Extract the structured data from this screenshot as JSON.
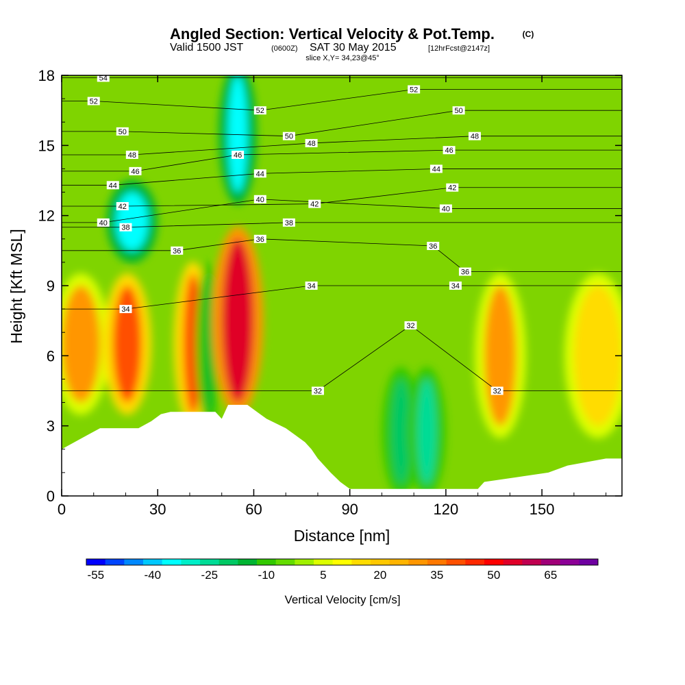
{
  "title": {
    "main": "Angled Section: Vertical Velocity & Pot.Temp.",
    "copyright": "(C)",
    "valid_prefix": "Valid 1500 JST",
    "zulu": "(0600Z)",
    "valid_date": "SAT 30 May 2015",
    "forecast": "[12hrFcst@2147z]",
    "slice": "slice X,Y= 34,23@45°"
  },
  "chart_data": {
    "type": "heatmap",
    "xlabel": "Distance [nm]",
    "ylabel": "Height [Kft MSL]",
    "xlim": [
      0,
      175
    ],
    "ylim": [
      0,
      18
    ],
    "x_ticks": [
      0,
      30,
      60,
      90,
      120,
      150
    ],
    "y_ticks": [
      0,
      3,
      6,
      9,
      12,
      15,
      18
    ],
    "colorbar": {
      "label": "Vertical Velocity [cm/s]",
      "tick_labels": [
        "-55",
        "-40",
        "-25",
        "-10",
        "5",
        "20",
        "35",
        "50",
        "65"
      ],
      "colors": [
        "#0000ff",
        "#0044ff",
        "#0088ff",
        "#00c8ff",
        "#00ffff",
        "#00eec8",
        "#00dc96",
        "#00c864",
        "#00b432",
        "#32c800",
        "#64dc00",
        "#a0f000",
        "#dcff00",
        "#ffff00",
        "#ffdc00",
        "#ffc800",
        "#ffb400",
        "#ff9600",
        "#ff7800",
        "#ff5000",
        "#ff2800",
        "#ff0000",
        "#e00028",
        "#c00050",
        "#a00078",
        "#8c0096",
        "#6e00a0"
      ]
    },
    "vertical_velocity_cells": [
      {
        "x": [
          0,
          12
        ],
        "y": [
          4,
          9
        ],
        "value": 30
      },
      {
        "x": [
          16,
          25
        ],
        "y": [
          4,
          9
        ],
        "value": 40
      },
      {
        "x": [
          17,
          27
        ],
        "y": [
          10.5,
          13
        ],
        "value": -35
      },
      {
        "x": [
          38,
          44
        ],
        "y": [
          3.5,
          9.5
        ],
        "value": 40
      },
      {
        "x": [
          45,
          47
        ],
        "y": [
          3.5,
          9.5
        ],
        "value": -15
      },
      {
        "x": [
          50,
          60
        ],
        "y": [
          4,
          11
        ],
        "value": 55
      },
      {
        "x": [
          52,
          58
        ],
        "y": [
          13,
          18
        ],
        "value": -35
      },
      {
        "x": [
          103,
          109
        ],
        "y": [
          0.5,
          5
        ],
        "value": -20
      },
      {
        "x": [
          111,
          117
        ],
        "y": [
          0.5,
          5
        ],
        "value": -25
      },
      {
        "x": [
          132,
          142
        ],
        "y": [
          3,
          9
        ],
        "value": 30
      },
      {
        "x": [
          160,
          175
        ],
        "y": [
          3,
          9
        ],
        "value": 15
      }
    ],
    "pot_temp_isentropes": [
      {
        "value": 32,
        "label_positions": [
          [
            80,
            4.5
          ],
          [
            109,
            7.3
          ],
          [
            136,
            4.5
          ]
        ]
      },
      {
        "value": 34,
        "label_positions": [
          [
            20,
            8
          ],
          [
            78,
            9
          ],
          [
            123,
            9
          ]
        ]
      },
      {
        "value": 36,
        "label_positions": [
          [
            36,
            10.5
          ],
          [
            62,
            11
          ],
          [
            116,
            10.7
          ],
          [
            126,
            9.6
          ]
        ]
      },
      {
        "value": 38,
        "label_positions": [
          [
            20,
            11.5
          ],
          [
            71,
            11.7
          ]
        ]
      },
      {
        "value": 40,
        "label_positions": [
          [
            13,
            11.7
          ],
          [
            62,
            12.7
          ],
          [
            120,
            12.3
          ]
        ]
      },
      {
        "value": 42,
        "label_positions": [
          [
            19,
            12.4
          ],
          [
            79,
            12.5
          ],
          [
            122,
            13.2
          ]
        ]
      },
      {
        "value": 44,
        "label_positions": [
          [
            16,
            13.3
          ],
          [
            62,
            13.8
          ],
          [
            117,
            14
          ]
        ]
      },
      {
        "value": 46,
        "label_positions": [
          [
            23,
            13.9
          ],
          [
            55,
            14.6
          ],
          [
            121,
            14.8
          ]
        ]
      },
      {
        "value": 48,
        "label_positions": [
          [
            22,
            14.6
          ],
          [
            78,
            15.1
          ],
          [
            129,
            15.4
          ]
        ]
      },
      {
        "value": 50,
        "label_positions": [
          [
            19,
            15.6
          ],
          [
            71,
            15.4
          ],
          [
            124,
            16.5
          ]
        ]
      },
      {
        "value": 52,
        "label_positions": [
          [
            10,
            16.9
          ],
          [
            62,
            16.5
          ],
          [
            110,
            17.4
          ]
        ]
      },
      {
        "value": 54,
        "label_positions": [
          [
            13,
            17.9
          ]
        ]
      }
    ],
    "terrain_profile_kft": [
      [
        0,
        2
      ],
      [
        4,
        2.3
      ],
      [
        8,
        2.6
      ],
      [
        12,
        2.9
      ],
      [
        24,
        2.9
      ],
      [
        28,
        3.2
      ],
      [
        31,
        3.5
      ],
      [
        34,
        3.6
      ],
      [
        48,
        3.6
      ],
      [
        50,
        3.3
      ],
      [
        52,
        3.9
      ],
      [
        58,
        3.9
      ],
      [
        61,
        3.6
      ],
      [
        64,
        3.3
      ],
      [
        70,
        2.9
      ],
      [
        73,
        2.6
      ],
      [
        76,
        2.3
      ],
      [
        78,
        2.0
      ],
      [
        80,
        1.6
      ],
      [
        82,
        1.3
      ],
      [
        84,
        1.0
      ],
      [
        87,
        0.6
      ],
      [
        90,
        0.3
      ],
      [
        130,
        0.3
      ],
      [
        132,
        0.6
      ],
      [
        142,
        0.8
      ],
      [
        152,
        1.0
      ],
      [
        158,
        1.3
      ],
      [
        170,
        1.6
      ],
      [
        175,
        1.6
      ]
    ]
  }
}
